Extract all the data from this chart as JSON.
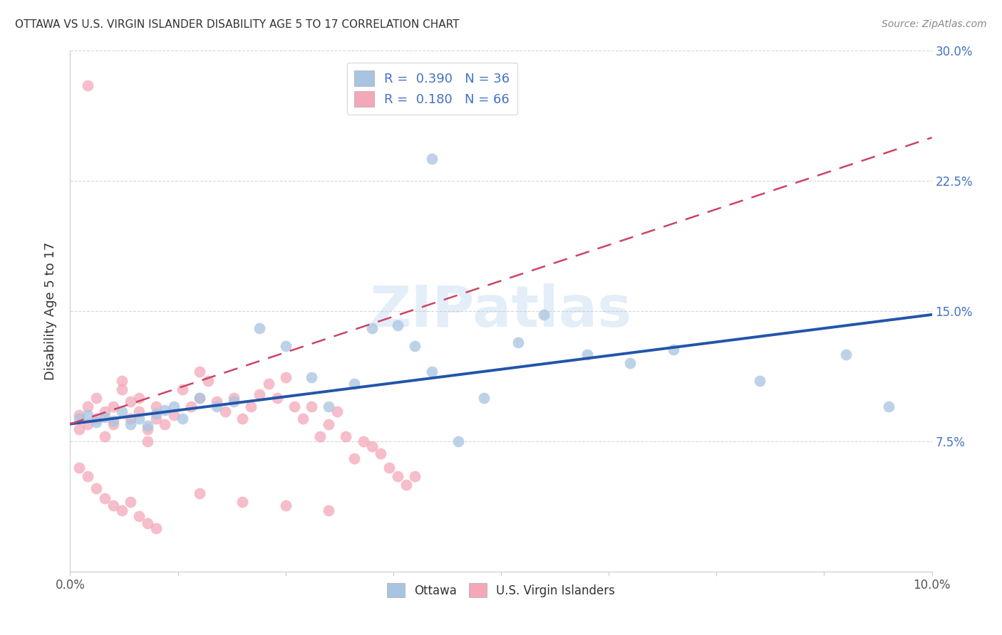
{
  "title": "OTTAWA VS U.S. VIRGIN ISLANDER DISABILITY AGE 5 TO 17 CORRELATION CHART",
  "source": "Source: ZipAtlas.com",
  "ylabel": "Disability Age 5 to 17",
  "xlim": [
    0,
    0.1
  ],
  "ylim": [
    0,
    0.3
  ],
  "xticks": [
    0.0,
    0.0125,
    0.025,
    0.0375,
    0.05,
    0.0625,
    0.075,
    0.0875,
    0.1
  ],
  "yticks": [
    0.0,
    0.075,
    0.15,
    0.225,
    0.3
  ],
  "xticklabels_show": [
    "0.0%",
    "10.0%"
  ],
  "xticklabels_pos": [
    0.0,
    0.1
  ],
  "yticklabels": [
    "",
    "7.5%",
    "15.0%",
    "22.5%",
    "30.0%"
  ],
  "ottawa_R": 0.39,
  "ottawa_N": 36,
  "virgin_R": 0.18,
  "virgin_N": 66,
  "ottawa_color": "#a8c4e0",
  "virgin_color": "#f4a7b9",
  "ottawa_line_color": "#2255aa",
  "virgin_line_color": "#cc4466",
  "background_color": "#ffffff",
  "grid_color": "#cccccc",
  "title_color": "#333333",
  "legend_text_color": "#4472c4",
  "watermark": "ZIPatlas",
  "ottawa_x": [
    0.001,
    0.002,
    0.003,
    0.004,
    0.005,
    0.006,
    0.007,
    0.008,
    0.009,
    0.01,
    0.011,
    0.012,
    0.013,
    0.015,
    0.017,
    0.019,
    0.022,
    0.025,
    0.028,
    0.03,
    0.033,
    0.035,
    0.038,
    0.04,
    0.042,
    0.045,
    0.048,
    0.052,
    0.055,
    0.06,
    0.065,
    0.07,
    0.08,
    0.09,
    0.095,
    0.042
  ],
  "ottawa_y": [
    0.088,
    0.09,
    0.086,
    0.089,
    0.087,
    0.092,
    0.085,
    0.088,
    0.084,
    0.091,
    0.093,
    0.095,
    0.088,
    0.1,
    0.095,
    0.098,
    0.14,
    0.13,
    0.112,
    0.095,
    0.108,
    0.14,
    0.142,
    0.13,
    0.115,
    0.075,
    0.1,
    0.132,
    0.148,
    0.125,
    0.12,
    0.128,
    0.11,
    0.125,
    0.095,
    0.238
  ],
  "virgin_x": [
    0.001,
    0.001,
    0.002,
    0.002,
    0.003,
    0.003,
    0.004,
    0.004,
    0.005,
    0.005,
    0.006,
    0.006,
    0.007,
    0.007,
    0.008,
    0.008,
    0.009,
    0.009,
    0.01,
    0.01,
    0.011,
    0.012,
    0.013,
    0.014,
    0.015,
    0.015,
    0.016,
    0.017,
    0.018,
    0.019,
    0.02,
    0.021,
    0.022,
    0.023,
    0.024,
    0.025,
    0.026,
    0.027,
    0.028,
    0.029,
    0.03,
    0.031,
    0.032,
    0.033,
    0.034,
    0.035,
    0.036,
    0.037,
    0.038,
    0.039,
    0.04,
    0.001,
    0.002,
    0.003,
    0.004,
    0.005,
    0.006,
    0.007,
    0.008,
    0.009,
    0.01,
    0.015,
    0.02,
    0.025,
    0.03,
    0.002
  ],
  "virgin_y": [
    0.09,
    0.082,
    0.085,
    0.095,
    0.1,
    0.088,
    0.092,
    0.078,
    0.095,
    0.085,
    0.105,
    0.11,
    0.098,
    0.088,
    0.092,
    0.1,
    0.082,
    0.075,
    0.088,
    0.095,
    0.085,
    0.09,
    0.105,
    0.095,
    0.1,
    0.115,
    0.11,
    0.098,
    0.092,
    0.1,
    0.088,
    0.095,
    0.102,
    0.108,
    0.1,
    0.112,
    0.095,
    0.088,
    0.095,
    0.078,
    0.085,
    0.092,
    0.078,
    0.065,
    0.075,
    0.072,
    0.068,
    0.06,
    0.055,
    0.05,
    0.055,
    0.06,
    0.055,
    0.048,
    0.042,
    0.038,
    0.035,
    0.04,
    0.032,
    0.028,
    0.025,
    0.045,
    0.04,
    0.038,
    0.035,
    0.28
  ]
}
